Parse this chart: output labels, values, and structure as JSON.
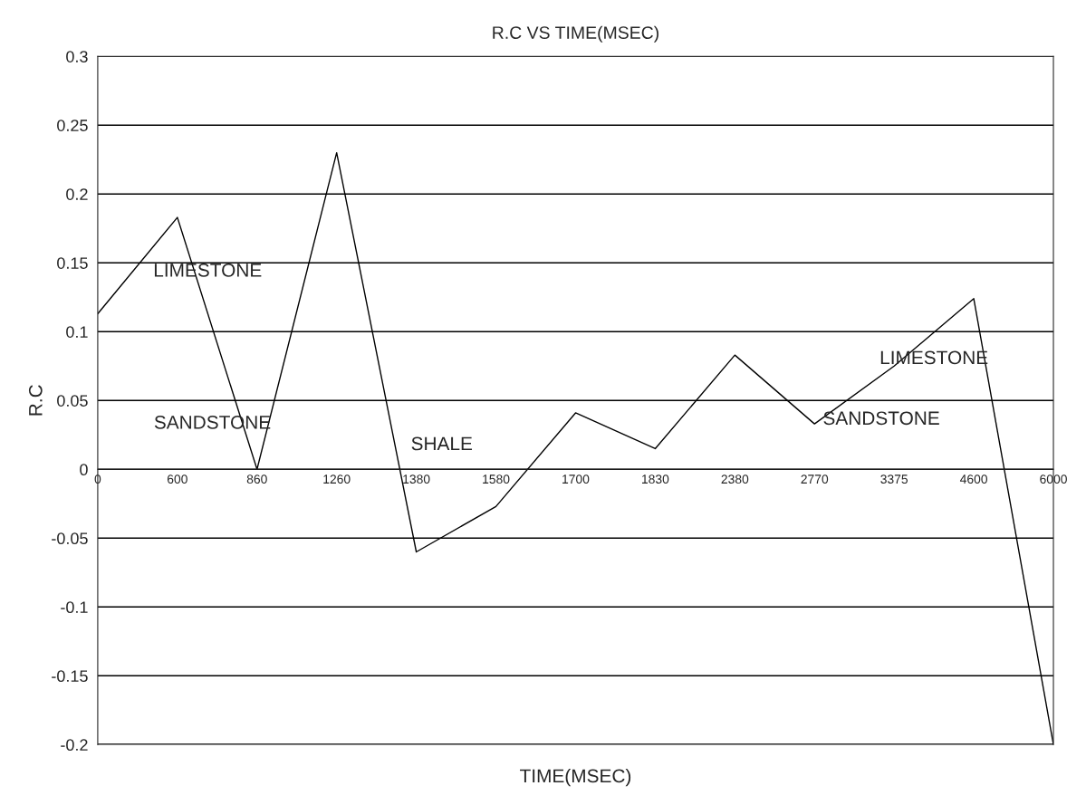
{
  "chart_data": {
    "type": "line",
    "title": "R.C VS TIME(MSEC)",
    "xlabel": "TIME(MSEC)",
    "ylabel": "R.C",
    "categories": [
      "0",
      "600",
      "860",
      "1260",
      "1380",
      "1580",
      "1700",
      "1830",
      "2380",
      "2770",
      "3375",
      "4600",
      "6000"
    ],
    "series": [
      {
        "color": "#000000",
        "values": [
          0.113,
          0.183,
          0.0,
          0.23,
          -0.06,
          -0.027,
          0.041,
          0.015,
          0.083,
          0.033,
          0.075,
          0.124,
          -0.2
        ]
      }
    ],
    "ylim": [
      -0.2,
      0.3
    ],
    "yticks": [
      -0.2,
      -0.15,
      -0.1,
      -0.05,
      0,
      0.05,
      0.1,
      0.15,
      0.2,
      0.25,
      0.3
    ],
    "grid": "y",
    "marker": "none",
    "line_style": "solid",
    "annotations": [
      "LIMESTONE",
      "SANDSTONE",
      "SHALE",
      "SANDSTONE",
      "LIMESTONE"
    ]
  }
}
